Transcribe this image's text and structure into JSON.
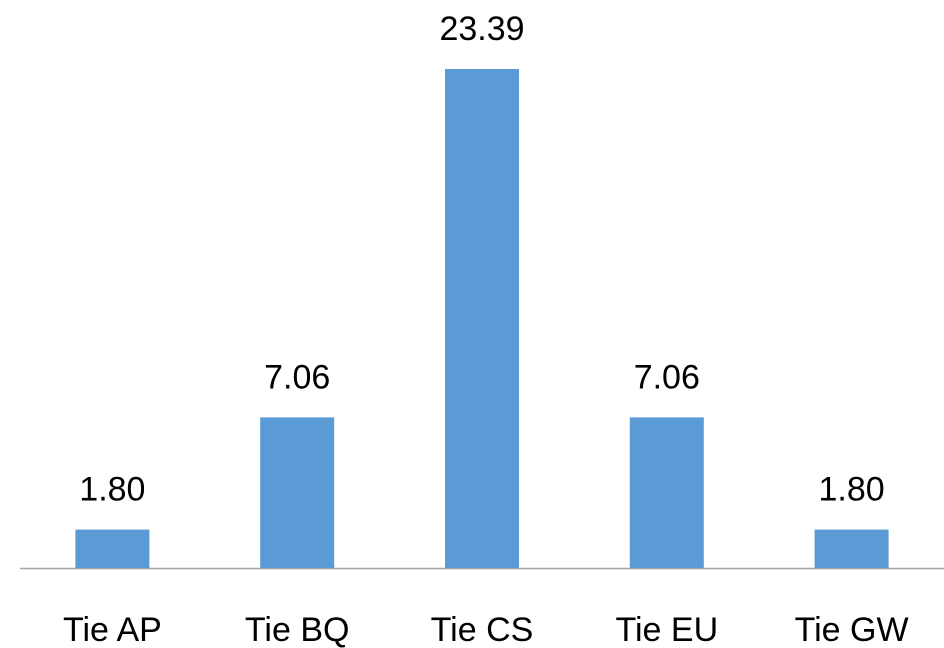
{
  "chart_data": {
    "type": "bar",
    "categories": [
      "Tie AP",
      "Tie BQ",
      "Tie CS",
      "Tie EU",
      "Tie GW"
    ],
    "values": [
      1.8,
      7.06,
      23.39,
      7.06,
      1.8
    ],
    "value_labels": [
      "1.80",
      "7.06",
      "23.39",
      "7.06",
      "1.80"
    ],
    "color": "#5b9bd5"
  }
}
